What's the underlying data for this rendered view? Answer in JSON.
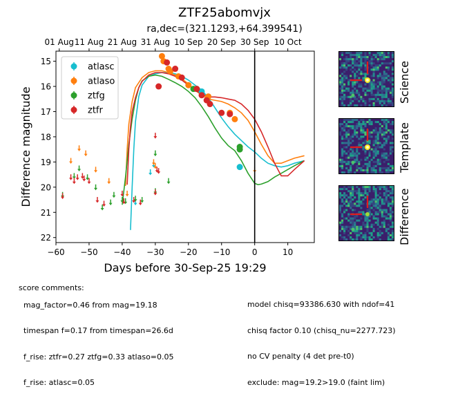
{
  "header": {
    "title": "ZTF25abomvjx",
    "subtitle": "ra,dec=(321.1293,+64.399541)"
  },
  "chart_data": {
    "type": "scatter",
    "xlabel": "Days before 30-Sep-25 19:29",
    "ylabel": "Difference magnitude",
    "xlim": [
      -60,
      18
    ],
    "ylim": [
      22.2,
      14.6
    ],
    "y_inverted": true,
    "x_ticks": [
      -60,
      -50,
      -40,
      -30,
      -20,
      -10,
      0,
      10
    ],
    "y_ticks": [
      15,
      16,
      17,
      18,
      19,
      20,
      21,
      22
    ],
    "top_axis_ticks": [
      {
        "x": -59,
        "label": "01 Aug"
      },
      {
        "x": -50,
        "label": "11 Aug"
      },
      {
        "x": -40,
        "label": "21 Aug"
      },
      {
        "x": -30,
        "label": "31 Aug"
      },
      {
        "x": -20,
        "label": "10 Sep"
      },
      {
        "x": -10,
        "label": "20 Sep"
      },
      {
        "x": 0,
        "label": "30 Sep"
      },
      {
        "x": 10,
        "label": "10 Oct"
      }
    ],
    "vertical_line_x": 0,
    "grid": false,
    "legend_position": "top-left",
    "series": [
      {
        "name": "atlasc",
        "color": "#17becf",
        "detections": [
          [
            -16,
            16.2
          ],
          [
            -4.5,
            19.2
          ]
        ],
        "upper_limits": [
          [
            -31.5,
            19.4
          ],
          [
            -30.5,
            19.1
          ],
          [
            -36,
            20.6
          ]
        ],
        "model": [
          [
            -37.5,
            21.7
          ],
          [
            -37,
            20.0
          ],
          [
            -36.5,
            18.5
          ],
          [
            -36,
            17.4
          ],
          [
            -35,
            16.4
          ],
          [
            -34,
            15.95
          ],
          [
            -32,
            15.6
          ],
          [
            -30,
            15.5
          ],
          [
            -28,
            15.45
          ],
          [
            -26,
            15.45
          ],
          [
            -24,
            15.5
          ],
          [
            -22,
            15.6
          ],
          [
            -20,
            15.75
          ],
          [
            -18,
            15.95
          ],
          [
            -16,
            16.15
          ],
          [
            -14,
            16.45
          ],
          [
            -12,
            16.85
          ],
          [
            -10,
            17.25
          ],
          [
            -8,
            17.6
          ],
          [
            -6,
            17.9
          ],
          [
            -4,
            18.15
          ],
          [
            -2,
            18.4
          ],
          [
            0,
            18.6
          ],
          [
            2,
            18.85
          ],
          [
            4,
            19.05
          ],
          [
            6,
            19.15
          ],
          [
            8,
            19.2
          ],
          [
            10,
            19.15
          ],
          [
            12,
            19.05
          ],
          [
            15,
            18.95
          ]
        ]
      },
      {
        "name": "atlaso",
        "color": "#ff7f0e",
        "detections": [
          [
            -28,
            14.8
          ],
          [
            -27.5,
            15.0
          ],
          [
            -26,
            15.3
          ],
          [
            -25.5,
            15.4
          ],
          [
            -23,
            15.6
          ],
          [
            -20,
            15.95
          ],
          [
            -14,
            16.4
          ],
          [
            -7.5,
            17.05
          ],
          [
            -6,
            17.3
          ]
        ],
        "upper_limits": [
          [
            -55.5,
            18.95
          ],
          [
            -53,
            18.45
          ],
          [
            -51,
            18.65
          ],
          [
            -48,
            19.3
          ],
          [
            -44,
            19.75
          ],
          [
            -38.5,
            20.25
          ],
          [
            -30.5,
            19.0
          ],
          [
            -30,
            19.15
          ],
          [
            0,
            19.3
          ]
        ],
        "model": [
          [
            -39,
            19.95
          ],
          [
            -38.5,
            18.5
          ],
          [
            -38,
            17.5
          ],
          [
            -37,
            16.6
          ],
          [
            -36,
            16.05
          ],
          [
            -34,
            15.65
          ],
          [
            -32,
            15.45
          ],
          [
            -30,
            15.38
          ],
          [
            -28,
            15.38
          ],
          [
            -26,
            15.45
          ],
          [
            -24,
            15.55
          ],
          [
            -22,
            15.7
          ],
          [
            -20,
            15.9
          ],
          [
            -18,
            16.15
          ],
          [
            -16,
            16.35
          ],
          [
            -14,
            16.5
          ],
          [
            -12,
            16.55
          ],
          [
            -10,
            16.6
          ],
          [
            -8,
            16.7
          ],
          [
            -6,
            16.85
          ],
          [
            -4,
            17.05
          ],
          [
            -2,
            17.35
          ],
          [
            0,
            17.8
          ],
          [
            2,
            18.3
          ],
          [
            4,
            18.75
          ],
          [
            6,
            19.05
          ],
          [
            8,
            19.05
          ],
          [
            10,
            18.95
          ],
          [
            12,
            18.85
          ],
          [
            15,
            18.75
          ]
        ]
      },
      {
        "name": "ztfg",
        "color": "#2ca02c",
        "detections": [
          [
            -18.5,
            16.1
          ],
          [
            -17.5,
            16.1
          ],
          [
            -4.5,
            18.4
          ],
          [
            -4.5,
            18.5
          ]
        ],
        "upper_limits": [
          [
            -58,
            20.3
          ],
          [
            -54.5,
            19.55
          ],
          [
            -53,
            19.25
          ],
          [
            -50.5,
            19.6
          ],
          [
            -48,
            20.0
          ],
          [
            -46,
            20.8
          ],
          [
            -43.5,
            20.6
          ],
          [
            -42.5,
            20.3
          ],
          [
            -40,
            20.5
          ],
          [
            -39,
            20.55
          ],
          [
            -36,
            20.45
          ],
          [
            -34,
            20.5
          ],
          [
            -30,
            18.65
          ],
          [
            -30,
            20.15
          ],
          [
            -26,
            19.75
          ]
        ],
        "model": [
          [
            -40,
            20.7
          ],
          [
            -39,
            19.6
          ],
          [
            -38,
            18.3
          ],
          [
            -37,
            17.3
          ],
          [
            -36,
            16.55
          ],
          [
            -35,
            16.05
          ],
          [
            -34,
            15.78
          ],
          [
            -32,
            15.6
          ],
          [
            -30,
            15.55
          ],
          [
            -28,
            15.6
          ],
          [
            -26,
            15.72
          ],
          [
            -24,
            15.85
          ],
          [
            -22,
            16.0
          ],
          [
            -20,
            16.2
          ],
          [
            -18,
            16.45
          ],
          [
            -16,
            16.8
          ],
          [
            -14,
            17.2
          ],
          [
            -12,
            17.65
          ],
          [
            -10,
            18.05
          ],
          [
            -8,
            18.35
          ],
          [
            -6,
            18.55
          ],
          [
            -4,
            18.95
          ],
          [
            -2,
            19.45
          ],
          [
            0,
            19.85
          ],
          [
            1,
            19.9
          ],
          [
            2,
            19.88
          ],
          [
            4,
            19.78
          ],
          [
            6,
            19.6
          ],
          [
            8,
            19.45
          ],
          [
            10,
            19.3
          ],
          [
            12,
            19.15
          ],
          [
            15,
            18.95
          ]
        ]
      },
      {
        "name": "ztfr",
        "color": "#d62728",
        "detections": [
          [
            -29,
            16.0
          ],
          [
            -26.5,
            15.05
          ],
          [
            -24,
            15.3
          ],
          [
            -22,
            15.65
          ],
          [
            -17.5,
            16.1
          ],
          [
            -16,
            16.35
          ],
          [
            -14.5,
            16.55
          ],
          [
            -13.5,
            16.7
          ],
          [
            -10,
            17.05
          ],
          [
            -7.5,
            17.1
          ]
        ],
        "upper_limits": [
          [
            -58,
            20.35
          ],
          [
            -55.5,
            19.6
          ],
          [
            -54.5,
            19.75
          ],
          [
            -53.5,
            19.6
          ],
          [
            -52,
            19.55
          ],
          [
            -51.5,
            19.65
          ],
          [
            -50,
            19.75
          ],
          [
            -47.5,
            20.5
          ],
          [
            -45.5,
            20.65
          ],
          [
            -40,
            20.25
          ],
          [
            -39.5,
            20.55
          ],
          [
            -36.5,
            20.5
          ],
          [
            -34.5,
            20.6
          ],
          [
            -30,
            17.95
          ],
          [
            -29.5,
            19.3
          ],
          [
            -29,
            19.35
          ],
          [
            -30,
            20.2
          ]
        ],
        "model": [
          [
            -38.5,
            19.9
          ],
          [
            -38,
            18.5
          ],
          [
            -37.5,
            17.6
          ],
          [
            -37,
            17.0
          ],
          [
            -36,
            16.45
          ],
          [
            -35,
            16.05
          ],
          [
            -34,
            15.8
          ],
          [
            -32,
            15.55
          ],
          [
            -30,
            15.45
          ],
          [
            -28,
            15.45
          ],
          [
            -26,
            15.5
          ],
          [
            -24,
            15.6
          ],
          [
            -22,
            15.75
          ],
          [
            -20,
            15.95
          ],
          [
            -18,
            16.15
          ],
          [
            -16,
            16.3
          ],
          [
            -14,
            16.42
          ],
          [
            -12,
            16.42
          ],
          [
            -10,
            16.45
          ],
          [
            -8,
            16.5
          ],
          [
            -6,
            16.55
          ],
          [
            -4,
            16.7
          ],
          [
            -2,
            16.95
          ],
          [
            0,
            17.3
          ],
          [
            2,
            17.8
          ],
          [
            4,
            18.4
          ],
          [
            6,
            19.05
          ],
          [
            8,
            19.55
          ],
          [
            10,
            19.55
          ],
          [
            12,
            19.3
          ],
          [
            15,
            18.95
          ]
        ]
      }
    ]
  },
  "thumbnails": [
    {
      "label": "Science"
    },
    {
      "label": "Template"
    },
    {
      "label": "Difference"
    }
  ],
  "comments": {
    "header": "score comments:",
    "left_lines": [
      "mag_factor=0.46 from mag=19.18",
      "timespan f=0.17 from timespan=26.6d",
      "f_rise: ztfr=0.27 ztfg=0.33 atlaso=0.05",
      "f_rise: atlasc=0.05"
    ],
    "right_lines": [
      "model chisq=93386.630 with ndof=41",
      "chisq factor 0.10 (chisq_nu=2277.723)",
      "no CV penalty (4 det pre-t0)",
      "exclude: mag=19.2>19.0 (faint lim)"
    ]
  }
}
